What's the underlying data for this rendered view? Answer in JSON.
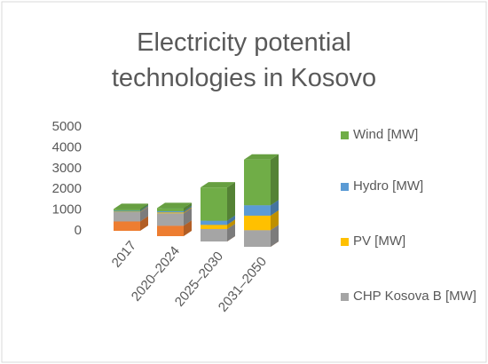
{
  "chart_data": {
    "type": "bar3d_stacked",
    "title": "Electricity potential technologies in Kosovo",
    "categories": [
      "2017",
      "2020–2024",
      "2025–2030",
      "2031–2050"
    ],
    "series": [
      {
        "color": "#ed7d31",
        "values": [
          450,
          500,
          0,
          0
        ]
      },
      {
        "name": "CHP Kosova B [MW]",
        "color": "#a5a5a5",
        "values": [
          450,
          600,
          600,
          800
        ]
      },
      {
        "name": "PV [MW]",
        "color": "#ffc000",
        "values": [
          20,
          40,
          200,
          700
        ]
      },
      {
        "name": "Hydro [MW]",
        "color": "#5b9bd5",
        "values": [
          50,
          60,
          200,
          500
        ]
      },
      {
        "name": "Wind [MW]",
        "color": "#70ad47",
        "values": [
          80,
          150,
          1600,
          2200
        ]
      }
    ],
    "ylim": [
      0,
      5000
    ],
    "yticks": [
      0,
      1000,
      2000,
      3000,
      4000,
      5000
    ],
    "grid": false
  }
}
